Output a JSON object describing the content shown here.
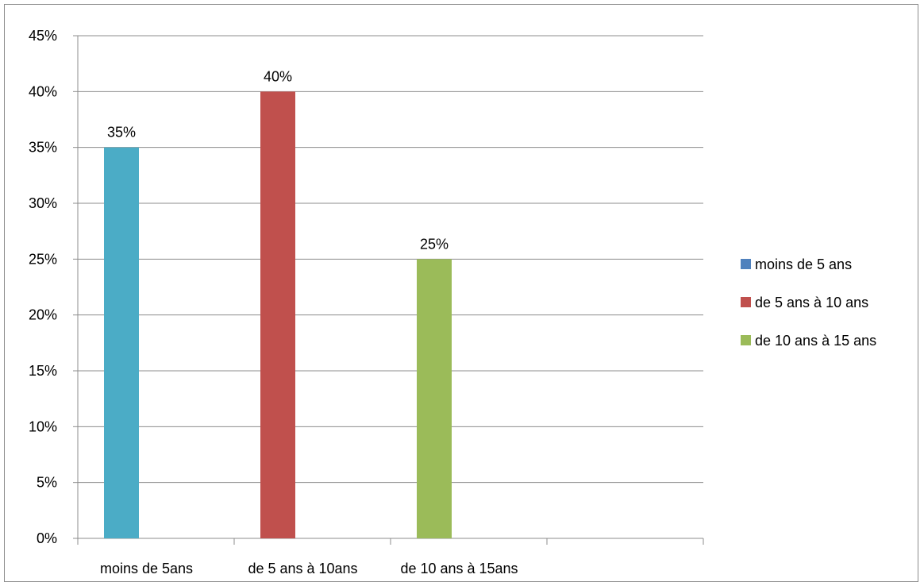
{
  "chart_data": {
    "type": "bar",
    "categories": [
      "moins de 5ans",
      "de 5 ans à 10ans",
      "de 10 ans à 15ans"
    ],
    "values": [
      0.35,
      0.4,
      0.25
    ],
    "data_labels": [
      "35%",
      "40%",
      "25%"
    ],
    "bar_colors": [
      "#4bacc6",
      "#c0504d",
      "#9bbb59"
    ],
    "y_ticks": [
      "0%",
      "5%",
      "10%",
      "15%",
      "20%",
      "25%",
      "30%",
      "35%",
      "40%",
      "45%"
    ],
    "ylim": [
      0,
      0.45
    ],
    "y_step": 0.05,
    "grid": true,
    "legend_position": "right",
    "legend": [
      {
        "label": "moins de 5 ans",
        "color": "#4f81bd"
      },
      {
        "label": "de 5 ans à 10 ans",
        "color": "#c0504d"
      },
      {
        "label": "de 10 ans à 15 ans",
        "color": "#9bbb59"
      }
    ]
  }
}
